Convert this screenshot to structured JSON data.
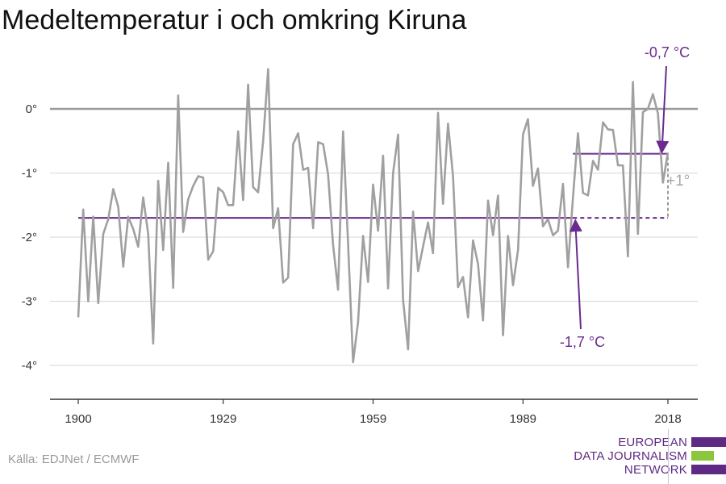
{
  "title": "Medeltemperatur i och omkring Kiruna",
  "source": "Källa: EDJNet / ECMWF",
  "logo": {
    "lines": [
      "EUROPEAN",
      "DATA JOURNALISM",
      "NETWORK"
    ],
    "colors": {
      "purple": "#5e2a84",
      "green": "#8cc63f"
    }
  },
  "colors": {
    "series": "#a0a0a0",
    "reference": "#6a2a8f",
    "zero_line": "#9b9b9b",
    "grid": "#dddddd",
    "axis": "#333333"
  },
  "chart_data": {
    "type": "line",
    "title": "Medeltemperatur i och omkring Kiruna",
    "xlabel": "",
    "ylabel": "",
    "xlim": [
      1900,
      2018
    ],
    "ylim": [
      -4.5,
      0.8
    ],
    "x_ticks": [
      1900,
      1929,
      1959,
      1989,
      2018
    ],
    "x_tick_labels": [
      "1900",
      "1929",
      "1959",
      "1989",
      "2018"
    ],
    "y_ticks": [
      0,
      -1,
      -2,
      -3,
      -4
    ],
    "y_tick_labels": [
      "0°",
      "-1°",
      "-2°",
      "-3°",
      "-4°"
    ],
    "grid": true,
    "series": [
      {
        "x": [
          1900,
          1901,
          1902,
          1903,
          1904,
          1905,
          1906,
          1907,
          1908,
          1909,
          1910,
          1911,
          1912,
          1913,
          1914,
          1915,
          1916,
          1917,
          1918,
          1919,
          1920,
          1921,
          1922,
          1923,
          1924,
          1925,
          1926,
          1927,
          1928,
          1929,
          1930,
          1931,
          1932,
          1933,
          1934,
          1935,
          1936,
          1937,
          1938,
          1939,
          1940,
          1941,
          1942,
          1943,
          1944,
          1945,
          1946,
          1947,
          1948,
          1949,
          1950,
          1951,
          1952,
          1953,
          1954,
          1955,
          1956,
          1957,
          1958,
          1959,
          1960,
          1961,
          1962,
          1963,
          1964,
          1965,
          1966,
          1967,
          1968,
          1969,
          1970,
          1971,
          1972,
          1973,
          1974,
          1975,
          1976,
          1977,
          1978,
          1979,
          1980,
          1981,
          1982,
          1983,
          1984,
          1985,
          1986,
          1987,
          1988,
          1989,
          1990,
          1991,
          1992,
          1993,
          1994,
          1995,
          1996,
          1997,
          1998,
          1999,
          2000,
          2001,
          2002,
          2003,
          2004,
          2005,
          2006,
          2007,
          2008,
          2009,
          2010,
          2011,
          2012,
          2013,
          2014,
          2015,
          2016,
          2017,
          2018
        ],
        "values": [
          -3.25,
          -1.57,
          -3.0,
          -1.68,
          -3.03,
          -1.95,
          -1.72,
          -1.25,
          -1.53,
          -2.46,
          -1.68,
          -1.87,
          -2.15,
          -1.38,
          -1.95,
          -3.66,
          -1.12,
          -2.2,
          -0.84,
          -2.79,
          0.21,
          -1.92,
          -1.41,
          -1.2,
          -1.05,
          -1.07,
          -2.35,
          -2.22,
          -1.23,
          -1.3,
          -1.5,
          -1.5,
          -0.35,
          -1.42,
          0.38,
          -1.22,
          -1.3,
          -0.5,
          0.62,
          -1.86,
          -1.55,
          -2.71,
          -2.63,
          -0.55,
          -0.38,
          -0.95,
          -0.92,
          -1.86,
          -0.52,
          -0.55,
          -1.02,
          -2.12,
          -2.82,
          -0.35,
          -2.1,
          -3.95,
          -3.32,
          -1.98,
          -2.7,
          -1.18,
          -1.9,
          -0.73,
          -2.8,
          -1.0,
          -0.4,
          -2.98,
          -3.75,
          -1.6,
          -2.53,
          -2.15,
          -1.77,
          -2.25,
          -0.06,
          -1.48,
          -0.23,
          -1.05,
          -2.78,
          -2.62,
          -3.25,
          -2.05,
          -2.42,
          -3.3,
          -1.43,
          -1.97,
          -1.35,
          -3.53,
          -1.98,
          -2.75,
          -2.2,
          -0.4,
          -0.16,
          -1.2,
          -0.93,
          -1.83,
          -1.72,
          -1.97,
          -1.9,
          -1.17,
          -2.47,
          -1.38,
          -0.38,
          -1.31,
          -1.35,
          -0.81,
          -0.95,
          -0.21,
          -0.32,
          -0.33,
          -0.88,
          -0.88,
          -2.3,
          0.42,
          -1.95,
          -0.05,
          0.0,
          0.23,
          -0.07,
          -1.15,
          -0.68
        ]
      }
    ],
    "reference_lines": [
      {
        "label": "-1,7 °C",
        "value": -1.7,
        "x_start": 1900,
        "x_end": 2018,
        "solid_until": 1999
      },
      {
        "label": "-0,7 °C",
        "value": -0.7,
        "x_start": 1999,
        "x_end": 2018
      }
    ],
    "annotations": [
      {
        "text": "-0,7 °C",
        "points_to_x": 2017,
        "points_to_y": -0.7
      },
      {
        "text": "-1,7 °C",
        "points_to_x": 2000,
        "points_to_y": -1.7
      },
      {
        "text": "+1°",
        "x": 2018
      }
    ]
  }
}
